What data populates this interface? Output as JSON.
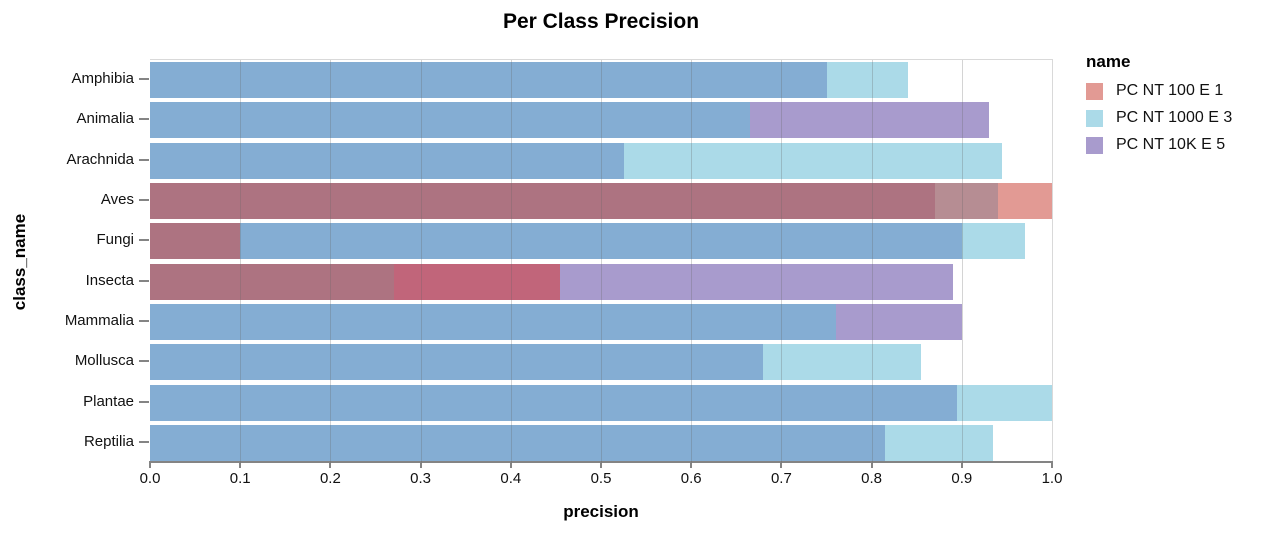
{
  "chart_data": {
    "type": "bar",
    "variant": "layered-horizontal-overlapping",
    "title": "Per Class Precision",
    "xlabel": "precision",
    "ylabel": "class_name",
    "legend_title": "name",
    "legend_position": "right",
    "grid": true,
    "xlim": [
      0.0,
      1.0
    ],
    "xticks": [
      "0.0",
      "0.1",
      "0.2",
      "0.3",
      "0.4",
      "0.5",
      "0.6",
      "0.7",
      "0.8",
      "0.9",
      "1.0"
    ],
    "categories": [
      "Amphibia",
      "Animalia",
      "Arachnida",
      "Aves",
      "Fungi",
      "Insecta",
      "Mammalia",
      "Mollusca",
      "Plantae",
      "Reptilia"
    ],
    "series": [
      {
        "name": "PC NT 100 E 1",
        "color": "#e29a94",
        "values": [
          null,
          null,
          null,
          1.0,
          0.1,
          0.455,
          null,
          null,
          null,
          null
        ]
      },
      {
        "name": "PC NT 1000 E 3",
        "color": "#abdae8",
        "values": [
          0.84,
          0.665,
          0.945,
          0.94,
          0.97,
          0.27,
          0.76,
          0.855,
          1.0,
          0.935
        ]
      },
      {
        "name": "PC NT 10K E 5",
        "color": "#a89bcd",
        "values": [
          0.75,
          0.93,
          0.525,
          0.87,
          0.9,
          0.89,
          0.9,
          0.68,
          0.895,
          0.815
        ]
      }
    ],
    "overlap_colors": {
      "rc": "#b68d93",
      "rp": "#c1657a",
      "cp": "#84add3",
      "rcp": "#ad7381"
    },
    "axis_colors": {
      "domain": "#848484",
      "grid": "#d4d4d4",
      "border": "#d9d9d9",
      "text": "#111111"
    }
  }
}
